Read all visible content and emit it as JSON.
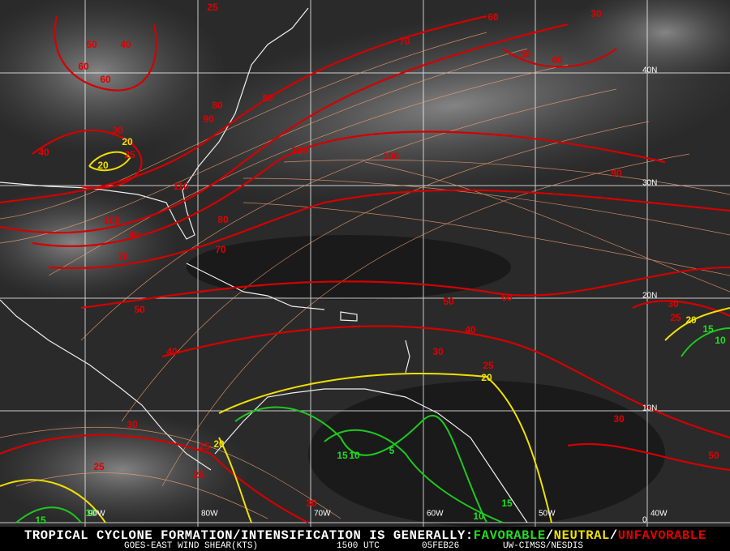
{
  "map": {
    "lat_labels": [
      "40N",
      "30N",
      "20N",
      "10N",
      "0"
    ],
    "lon_labels": [
      "90W",
      "80W",
      "70W",
      "60W",
      "50W",
      "40W"
    ],
    "contours": {
      "red": [
        25,
        60,
        30,
        50,
        40,
        60,
        60,
        70,
        50,
        60,
        80,
        80,
        90,
        30,
        40,
        25,
        120,
        100,
        110,
        90,
        100,
        80,
        90,
        70,
        70,
        50,
        50,
        60,
        40,
        40,
        30,
        25,
        30,
        30,
        25,
        25,
        25,
        50,
        30,
        30,
        25
      ],
      "yellow": [
        20,
        20,
        20,
        20,
        20
      ],
      "green": [
        15,
        10,
        15,
        10,
        5,
        15,
        10,
        15,
        10
      ]
    },
    "footer": {
      "line1": {
        "lead": "TROPICAL CYCLONE FORMATION/INTENSIFICATION IS GENERALLY:",
        "favorable": "FAVORABLE",
        "sep1": "/",
        "neutral": "NEUTRAL",
        "sep2": "/",
        "unfavorable": "UNFAVORABLE"
      },
      "line2": {
        "product": "GOES-EAST WIND SHEAR(KTS)",
        "time": "1500 UTC",
        "date": "05FEB26",
        "source": "UW-CIMSS/NESDIS"
      }
    }
  }
}
